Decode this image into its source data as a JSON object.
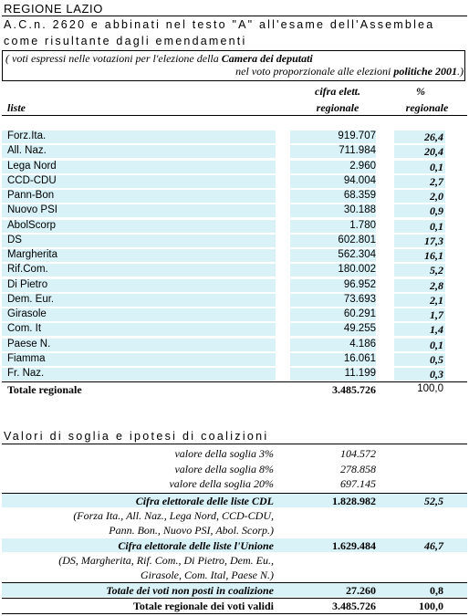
{
  "header": {
    "region": "REGIONE LAZIO",
    "line1": "A.C.n. 2620 e abbinati nel testo \"A\" all'esame dell'Assemblea",
    "line2": "come risultante dagli emendamenti",
    "note_line1_pre": "( voti espressi nelle votazioni per l'elezione della ",
    "note_line1_bold": "Camera dei deputati",
    "note_line2_pre": "nel voto proporzionale alle elezioni ",
    "note_line2_bold": "politiche 2001",
    "note_line2_post": ".)"
  },
  "columns": {
    "liste": "liste",
    "cifra_line1": "cifra elett.",
    "cifra_line2": "regionale",
    "pct_line1": "%",
    "pct_line2": "regionale"
  },
  "rows": [
    {
      "name": "Forz.Ita.",
      "value": "919.707",
      "pct": "26,4"
    },
    {
      "name": "All. Naz.",
      "value": "711.984",
      "pct": "20,4"
    },
    {
      "name": "Lega Nord",
      "value": "2.960",
      "pct": "0,1"
    },
    {
      "name": "CCD-CDU",
      "value": "94.004",
      "pct": "2,7"
    },
    {
      "name": "Pann-Bon",
      "value": "68.359",
      "pct": "2,0"
    },
    {
      "name": "Nuovo PSI",
      "value": "30.188",
      "pct": "0,9"
    },
    {
      "name": "AbolScorp",
      "value": "1.780",
      "pct": "0,1"
    },
    {
      "name": "DS",
      "value": "602.801",
      "pct": "17,3"
    },
    {
      "name": "Margherita",
      "value": "562.304",
      "pct": "16,1"
    },
    {
      "name": "Rif.Com.",
      "value": "180.002",
      "pct": "5,2"
    },
    {
      "name": "Di Pietro",
      "value": "96.952",
      "pct": "2,8"
    },
    {
      "name": "Dem. Eur.",
      "value": "73.693",
      "pct": "2,1"
    },
    {
      "name": "Girasole",
      "value": "60.291",
      "pct": "1,7"
    },
    {
      "name": "Com. It",
      "value": "49.255",
      "pct": "1,4"
    },
    {
      "name": "Paese N.",
      "value": "4.186",
      "pct": "0,1"
    },
    {
      "name": "Fiamma",
      "value": "16.061",
      "pct": "0,5"
    },
    {
      "name": "Fr. Naz.",
      "value": "11.199",
      "pct": "0,3"
    }
  ],
  "total": {
    "name": "Totale regionale",
    "value": "3.485.726",
    "pct": "100,0"
  },
  "section2": {
    "title": "Valori di soglia e ipotesi di coalizioni",
    "soglia3_label": "valore della soglia 3%",
    "soglia3_value": "104.572",
    "soglia8_label": "valore della soglia 8%",
    "soglia8_value": "278.858",
    "soglia20_label": "valore della soglia 20%",
    "soglia20_value": "697.145",
    "cdl_label": "Cifra elettorale delle liste CDL",
    "cdl_value": "1.828.982",
    "cdl_pct": "52,5",
    "cdl_note1": "(Forza Ita., All. Naz., Lega Nord, CCD-CDU,",
    "cdl_note2": "Pann. Bon., Nuovo PSI, Abol. Scorp.)",
    "unione_label": "Cifra elettorale delle liste l'Unione",
    "unione_value": "1.629.484",
    "unione_pct": "46,7",
    "unione_note1": "(DS, Margherita, Rif. Com., Di Pietro, Dem. Eu.,",
    "unione_note2": "Girasole, Com. Ital, Paese N.)",
    "nonposti_label": "Totale dei voti non posti in coalizione",
    "nonposti_value": "27.260",
    "nonposti_pct": "0,8",
    "validi_label": "Totale regionale dei voti validi",
    "validi_value": "3.485.726",
    "validi_pct": "100,0"
  },
  "colors": {
    "highlight": "#d8f2f8"
  }
}
